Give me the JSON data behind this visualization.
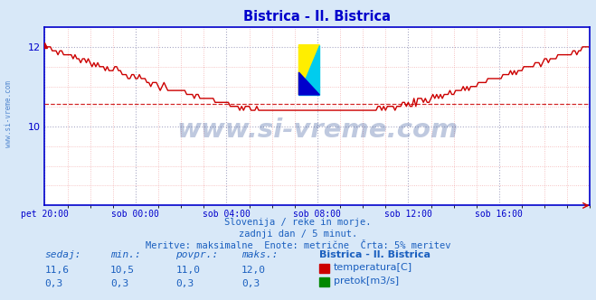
{
  "title": "Bistrica - Il. Bistrica",
  "title_color": "#0000cc",
  "bg_color": "#d8e8f8",
  "plot_bg_color": "#ffffff",
  "grid_color_major": "#9999bb",
  "border_color": "#0000cc",
  "x_tick_labels": [
    "pet 20:00",
    "sob 00:00",
    "sob 04:00",
    "sob 08:00",
    "sob 12:00",
    "sob 16:00"
  ],
  "ylim": [
    8.0,
    12.5
  ],
  "xlim": [
    0,
    288
  ],
  "temp_color": "#cc0000",
  "flow_color": "#008800",
  "avg_value": 10.55,
  "temp_min": 10.5,
  "temp_max": 12.0,
  "temp_avg": 11.0,
  "temp_now": 11.6,
  "flow_min": 0.3,
  "flow_max": 0.3,
  "flow_avg": 0.3,
  "flow_now": 0.3,
  "watermark": "www.si-vreme.com",
  "watermark_color": "#1a3f8c",
  "watermark_alpha": 0.28,
  "footer_line1": "Slovenija / reke in morje.",
  "footer_line2": "zadnji dan / 5 minut.",
  "footer_line3": "Meritve: maksimalne  Enote: metrične  Črta: 5% meritev",
  "footer_color": "#1a5fbf",
  "legend_title": "Bistrica - Il. Bistrica",
  "legend_items": [
    "temperatura[C]",
    "pretok[m3/s]"
  ],
  "legend_colors": [
    "#cc0000",
    "#008800"
  ],
  "table_headers": [
    "sedaj:",
    "min.:",
    "povpr.:",
    "maks.:"
  ],
  "table_values_temp": [
    "11,6",
    "10,5",
    "11,0",
    "12,0"
  ],
  "table_values_flow": [
    "0,3",
    "0,3",
    "0,3",
    "0,3"
  ],
  "n_points": 288,
  "sidebar_text": "www.si-vreme.com",
  "sidebar_color": "#1a5fbf"
}
